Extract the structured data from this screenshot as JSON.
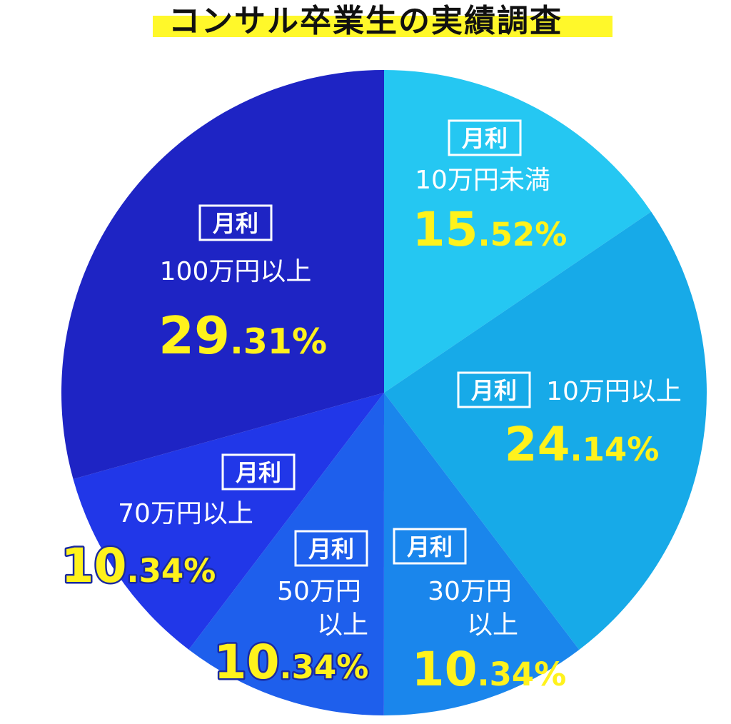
{
  "title": "コンサル卒業生の実績調査",
  "colors": {
    "title_band": "#fff82a",
    "value_text": "#fff21c",
    "label_text": "#ffffff"
  },
  "chart_data": {
    "type": "pie",
    "title": "コンサル卒業生の実績調査",
    "start_angle_deg": 0,
    "direction": "clockwise",
    "slices": [
      {
        "badge": "月利",
        "label": "10万円未満",
        "int": "15",
        "dec": ".52%",
        "value": 15.52,
        "color": "#25c7f2"
      },
      {
        "badge": "月利",
        "label": "10万円以上",
        "int": "24",
        "dec": ".14%",
        "value": 24.14,
        "color": "#17aae8"
      },
      {
        "badge": "月利",
        "label_l1": "30万円",
        "label_l2": "以上",
        "int": "10",
        "dec": ".34%",
        "value": 10.34,
        "color": "#1a86ec"
      },
      {
        "badge": "月利",
        "label_l1": "50万円",
        "label_l2": "以上",
        "int": "10",
        "dec": ".34%",
        "value": 10.34,
        "color": "#1e5fec"
      },
      {
        "badge": "月利",
        "label": "70万円以上",
        "int": "10",
        "dec": ".34%",
        "value": 10.34,
        "color": "#2137e8"
      },
      {
        "badge": "月利",
        "label": "100万円以上",
        "int": "29",
        "dec": ".31%",
        "value": 29.31,
        "color": "#1e24c4"
      }
    ]
  }
}
